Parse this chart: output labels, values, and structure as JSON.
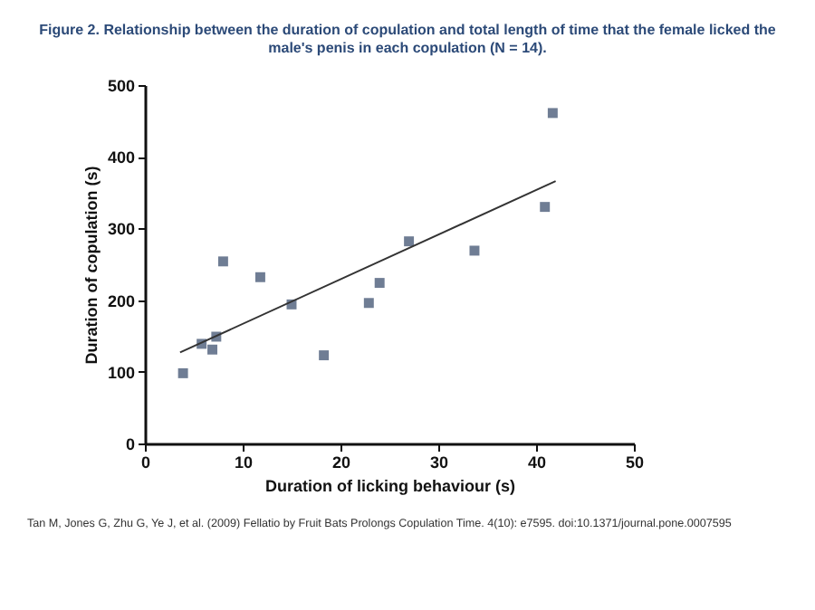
{
  "chart_data": {
    "type": "scatter",
    "title": "Figure 2. Relationship between the duration of copulation and total length of time that the female licked the male's penis in each copulation (N = 14).",
    "xlabel": "Duration of licking behaviour (s)",
    "ylabel": "Duration of copulation (s)",
    "x": [
      3.9,
      5.8,
      6.9,
      7.3,
      8.0,
      11.8,
      15.0,
      18.3,
      22.9,
      24.0,
      27.0,
      33.7,
      40.9,
      41.7
    ],
    "series": [
      {
        "color": "#6f7d94",
        "values": [
          98,
          139,
          131,
          149,
          254,
          232,
          194,
          123,
          196,
          224,
          282,
          269,
          330,
          461
        ]
      },
      {
        "type": "line",
        "marker": "none",
        "color": "#333333",
        "x": [
          3.6,
          42
        ],
        "values": [
          127,
          366
        ]
      }
    ],
    "xlim": [
      0,
      50
    ],
    "ylim": [
      0,
      500
    ],
    "xticks": [
      0,
      10,
      20,
      30,
      40,
      50
    ],
    "yticks": [
      0,
      100,
      200,
      300,
      400,
      500
    ],
    "marker": "square",
    "annotations": [
      "Tan M, Jones G, Zhu G, Ye J, et al. (2009) Fellatio by Fruit Bats Prolongs Copulation Time. 4(10): e7595. doi:10.1371/journal.pone.0007595"
    ]
  }
}
